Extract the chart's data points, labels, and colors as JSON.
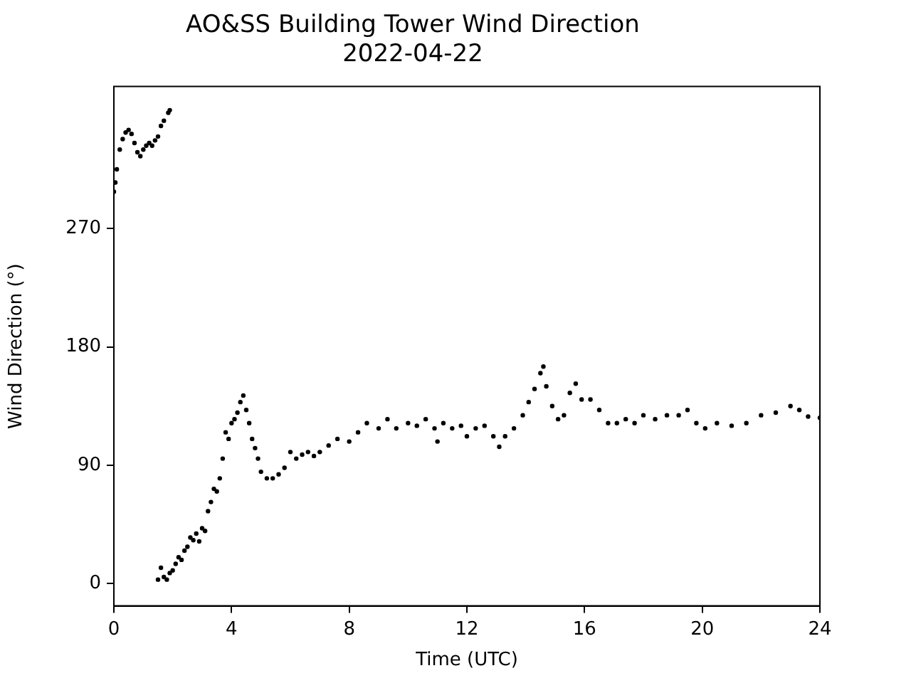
{
  "chart_data": {
    "type": "scatter",
    "title": "AO&SS Building Tower Wind Direction",
    "subtitle": "2022-04-22",
    "xlabel": "Time (UTC)",
    "ylabel": "Wind Direction (°)",
    "x": [
      0,
      0.05,
      0.1,
      0.2,
      0.3,
      0.4,
      0.5,
      0.6,
      0.7,
      0.8,
      0.9,
      1.0,
      1.1,
      1.2,
      1.3,
      1.4,
      1.5,
      1.6,
      1.7,
      1.85,
      1.9,
      1.5,
      1.6,
      1.7,
      1.8,
      1.9,
      2.0,
      2.1,
      2.2,
      2.3,
      2.4,
      2.5,
      2.6,
      2.7,
      2.8,
      2.9,
      3.0,
      3.1,
      3.2,
      3.3,
      3.4,
      3.5,
      3.6,
      3.7,
      3.8,
      3.9,
      4.0,
      4.1,
      4.2,
      4.3,
      4.4,
      4.5,
      4.6,
      4.7,
      4.8,
      4.9,
      5.0,
      5.2,
      5.4,
      5.6,
      5.8,
      6.0,
      6.2,
      6.4,
      6.6,
      6.8,
      7.0,
      7.3,
      7.6,
      8.0,
      8.3,
      8.6,
      9.0,
      9.3,
      9.6,
      10.0,
      10.3,
      10.6,
      10.9,
      11.0,
      11.2,
      11.5,
      11.8,
      12.0,
      12.3,
      12.6,
      12.9,
      13.1,
      13.3,
      13.6,
      13.9,
      14.1,
      14.3,
      14.5,
      14.6,
      14.7,
      14.9,
      15.1,
      15.3,
      15.5,
      15.7,
      15.9,
      16.2,
      16.5,
      16.8,
      17.1,
      17.4,
      17.7,
      18.0,
      18.4,
      18.8,
      19.2,
      19.5,
      19.8,
      20.1,
      20.5,
      21.0,
      21.5,
      22.0,
      22.5,
      23.0,
      23.3,
      23.6,
      24.0
    ],
    "values": [
      298,
      305,
      315,
      330,
      338,
      343,
      345,
      342,
      335,
      328,
      325,
      330,
      333,
      335,
      333,
      337,
      340,
      348,
      352,
      358,
      360,
      3,
      12,
      5,
      3,
      8,
      10,
      15,
      20,
      18,
      25,
      28,
      35,
      33,
      38,
      32,
      42,
      40,
      55,
      62,
      72,
      70,
      80,
      95,
      115,
      110,
      122,
      125,
      130,
      138,
      143,
      132,
      122,
      110,
      103,
      95,
      85,
      80,
      80,
      83,
      88,
      100,
      95,
      98,
      100,
      97,
      100,
      105,
      110,
      108,
      115,
      122,
      118,
      125,
      118,
      122,
      120,
      125,
      118,
      108,
      122,
      118,
      120,
      112,
      118,
      120,
      112,
      104,
      112,
      118,
      128,
      138,
      148,
      160,
      165,
      150,
      135,
      125,
      128,
      145,
      152,
      140,
      140,
      132,
      122,
      122,
      125,
      122,
      128,
      125,
      128,
      128,
      132,
      122,
      118,
      122,
      120,
      122,
      128,
      130,
      135,
      132,
      127,
      126
    ],
    "color": "#000000",
    "marker": "circle",
    "grid": false,
    "legend": false,
    "xlim": [
      0,
      24
    ],
    "xticks": [
      0,
      4,
      8,
      12,
      16,
      20,
      24
    ],
    "ylim": [
      -17,
      378
    ],
    "yticks": [
      0,
      90,
      180,
      270
    ]
  }
}
